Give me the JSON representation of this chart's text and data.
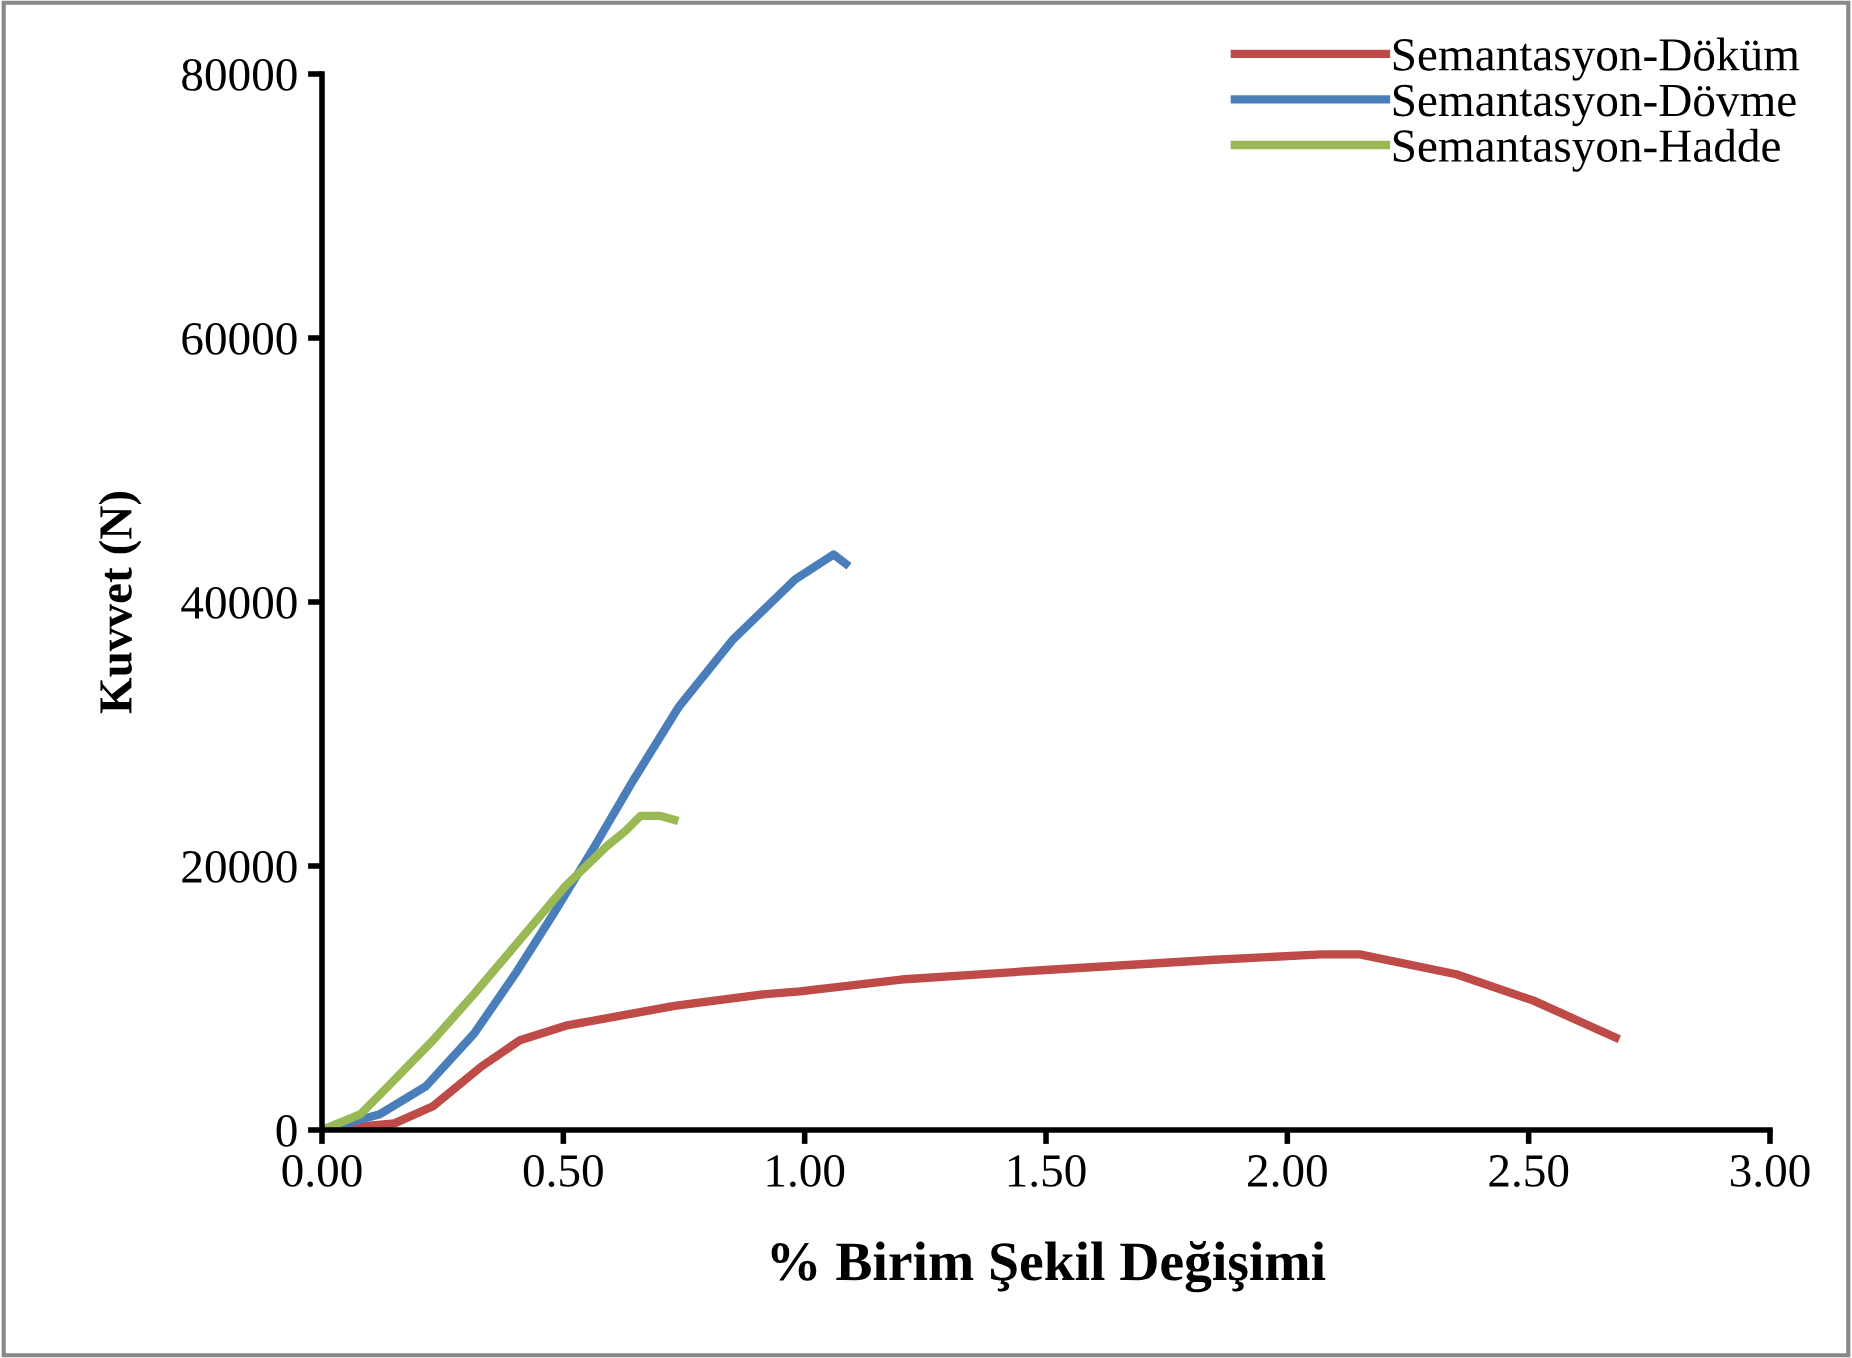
{
  "chart_data": {
    "type": "line",
    "xlabel": "% Birim Şekil Değişimi",
    "ylabel": "Kuvvet (N)",
    "xlim": [
      0,
      3
    ],
    "xticks": [
      {
        "value": 0,
        "label": "0.00"
      },
      {
        "value": 0.5,
        "label": "0.50"
      },
      {
        "value": 1,
        "label": "1.00"
      },
      {
        "value": 1.5,
        "label": "1.50"
      },
      {
        "value": 2,
        "label": "2.00"
      },
      {
        "value": 2.5,
        "label": "2.50"
      },
      {
        "value": 3,
        "label": "3.00"
      }
    ],
    "ylim": [
      0,
      80000
    ],
    "yticks": [
      0,
      20000,
      40000,
      60000,
      80000
    ],
    "grid": false,
    "legend": "top right",
    "marker": "none",
    "line_style": "solid",
    "series": [
      {
        "name": "Semantasyon-Döküm",
        "color": "#be4b48",
        "x": [
          0,
          0.15,
          0.23,
          0.33,
          0.41,
          0.505,
          0.73,
          0.92,
          0.99,
          1.2,
          1.49,
          1.85,
          2.07,
          2.15,
          2.35,
          2.51,
          2.68
        ],
        "values": [
          0,
          500,
          1800,
          4800,
          6800,
          7900,
          9400,
          10300,
          10500,
          11400,
          12100,
          12900,
          13300,
          13300,
          11800,
          9800,
          7000
        ]
      },
      {
        "name": "Semantasyon-Dövme",
        "color": "#4a7ebb",
        "x": [
          0,
          0.12,
          0.215,
          0.315,
          0.4,
          0.48,
          0.565,
          0.645,
          0.74,
          0.85,
          0.98,
          1.06,
          1.085
        ],
        "values": [
          0,
          1200,
          3300,
          7300,
          11800,
          16400,
          21500,
          26500,
          32100,
          37100,
          41700,
          43600,
          42900
        ]
      },
      {
        "name": "Semantasyon-Hadde",
        "color": "#98b954",
        "x": [
          0,
          0.08,
          0.15,
          0.23,
          0.315,
          0.41,
          0.505,
          0.59,
          0.63,
          0.66,
          0.7,
          0.73
        ],
        "values": [
          0,
          1200,
          3800,
          6800,
          10300,
          14400,
          18500,
          21500,
          22700,
          23800,
          23800,
          23500
        ]
      }
    ]
  }
}
